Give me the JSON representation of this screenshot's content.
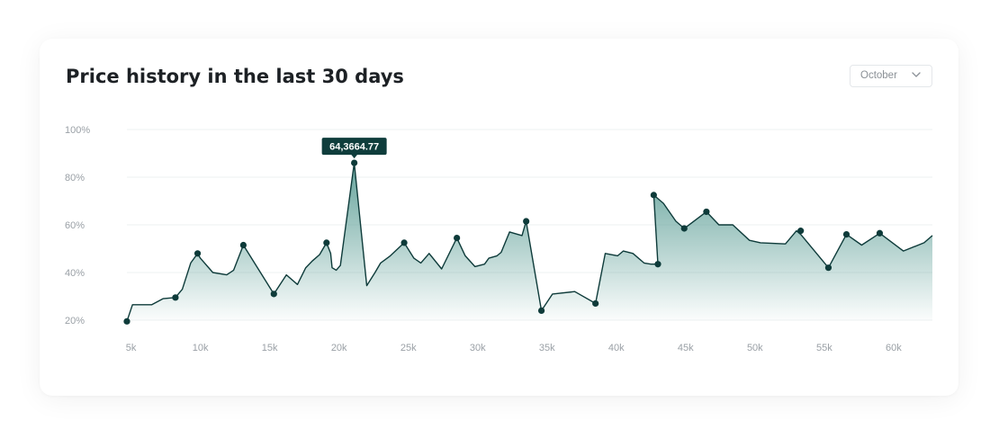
{
  "colors": {
    "line": "#0e3b3a",
    "fill_top": "#5e9f97",
    "tooltip_bg": "#0f3d3c",
    "grid": "#eef0f2"
  },
  "header": {
    "title": "Price history in the last 30 days",
    "dropdown": {
      "selected": "October",
      "icon": "chevron-down-icon"
    }
  },
  "chart_data": {
    "type": "area",
    "title": "Price history in the last 30 days",
    "xlabel": "",
    "ylabel": "",
    "xlim": [
      4700,
      62800
    ],
    "ylim": [
      20,
      100
    ],
    "y_ticks": [
      "20%",
      "40%",
      "60%",
      "80%",
      "100%"
    ],
    "x_ticks": [
      "5k",
      "10k",
      "15k",
      "20k",
      "25k",
      "30k",
      "35k",
      "40k",
      "45k",
      "50k",
      "55k",
      "60k"
    ],
    "x_tick_values": [
      5000,
      10000,
      15000,
      20000,
      25000,
      30000,
      35000,
      40000,
      45000,
      50000,
      55000,
      60000
    ],
    "grid": true,
    "legend": "none",
    "series": [
      {
        "x": [
          4700,
          5100,
          6500,
          7300,
          8200,
          8700,
          9300,
          9800,
          10000,
          10900,
          11900,
          12400,
          13100,
          15300,
          16200,
          17000,
          17600,
          18100,
          18600,
          19100,
          19400,
          19500,
          19800,
          20100,
          21100,
          22000,
          22600,
          23000,
          23700,
          24700,
          25400,
          25900,
          26500,
          27400,
          28500,
          29100,
          29800,
          30500,
          30800,
          31400,
          31700,
          32300,
          33200,
          33500,
          34600,
          35400,
          37000,
          38500,
          39200,
          40100,
          40500,
          41200,
          42000,
          42500,
          43000,
          42700,
          43400,
          44300,
          44900,
          46500,
          47400,
          48400,
          49600,
          50400,
          52200,
          53000,
          53300,
          55300,
          56600,
          57700,
          59000,
          60700,
          62200,
          62800
        ],
        "y": [
          19.5,
          26.5,
          26.5,
          29,
          29.5,
          33,
          44,
          48,
          46,
          40,
          39,
          41,
          51.5,
          31,
          39,
          35,
          42,
          45,
          47.5,
          52.5,
          48,
          42,
          41,
          43,
          86,
          34.5,
          40,
          44,
          47,
          52.5,
          46,
          44,
          48,
          41.5,
          54.5,
          47,
          42.5,
          43.5,
          46,
          47,
          48.5,
          57,
          55.5,
          61.5,
          24,
          31,
          32,
          27,
          48,
          47,
          49,
          48,
          44,
          43.5,
          43.5,
          72.5,
          69,
          61.5,
          58.5,
          65.5,
          60,
          60,
          53.5,
          52.5,
          52,
          57.5,
          56,
          42,
          56,
          51.5,
          56.5,
          49,
          52.5,
          55.5
        ]
      }
    ],
    "markers": [
      {
        "x": 4700,
        "y": 19.5
      },
      {
        "x": 8200,
        "y": 29.5
      },
      {
        "x": 9800,
        "y": 48
      },
      {
        "x": 13100,
        "y": 51.5
      },
      {
        "x": 15300,
        "y": 31
      },
      {
        "x": 19100,
        "y": 52.5
      },
      {
        "x": 21100,
        "y": 86,
        "label": "64,3664.77"
      },
      {
        "x": 24700,
        "y": 52.5
      },
      {
        "x": 28500,
        "y": 54.5
      },
      {
        "x": 33500,
        "y": 61.5
      },
      {
        "x": 34600,
        "y": 24
      },
      {
        "x": 38500,
        "y": 27
      },
      {
        "x": 42700,
        "y": 72.5
      },
      {
        "x": 43000,
        "y": 43.5
      },
      {
        "x": 44900,
        "y": 58.5
      },
      {
        "x": 46500,
        "y": 65.5
      },
      {
        "x": 53300,
        "y": 57.5
      },
      {
        "x": 55300,
        "y": 42
      },
      {
        "x": 56600,
        "y": 56
      },
      {
        "x": 59000,
        "y": 56.5
      }
    ]
  }
}
